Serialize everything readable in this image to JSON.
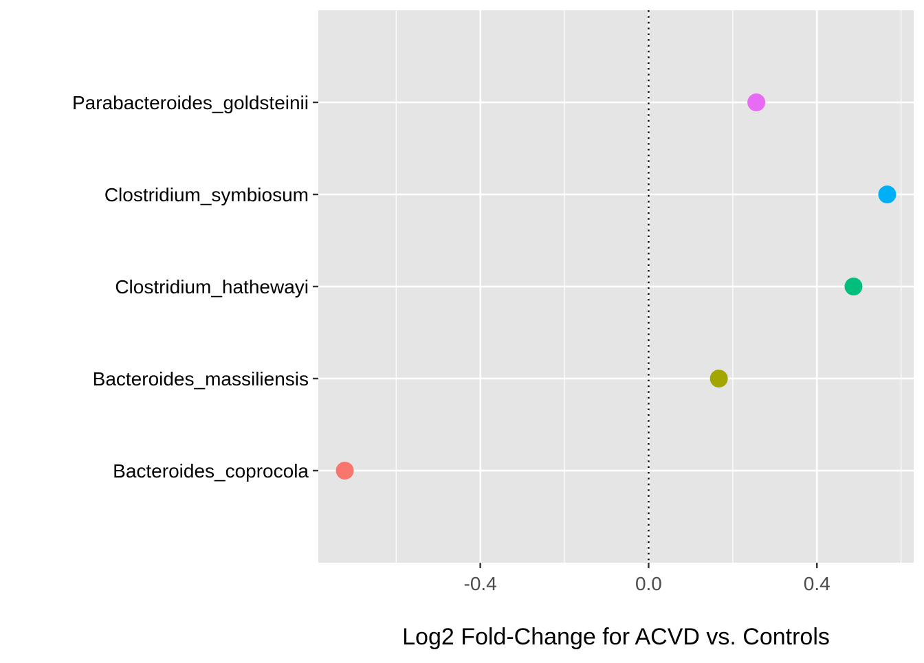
{
  "chart_data": {
    "type": "scatter",
    "title": "",
    "xlabel": "Log2 Fold-Change for ACVD vs. Controls",
    "ylabel": "",
    "xlim": [
      -0.785,
      0.63
    ],
    "x_ticks": [
      {
        "value": -0.4,
        "label": "-0.4"
      },
      {
        "value": 0.0,
        "label": "0.0"
      },
      {
        "value": 0.4,
        "label": "0.4"
      }
    ],
    "x_minor_gridlines": [
      -0.6,
      -0.2,
      0.2,
      0.6
    ],
    "categories": [
      "Bacteroides_coprocola",
      "Bacteroides_massiliensis",
      "Clostridium_hathewayi",
      "Clostridium_symbiosum",
      "Parabacteroides_goldsteinii"
    ],
    "points": [
      {
        "category": "Bacteroides_coprocola",
        "x": -0.722,
        "color": "#F8766D"
      },
      {
        "category": "Bacteroides_massiliensis",
        "x": 0.167,
        "color": "#A3A500"
      },
      {
        "category": "Clostridium_hathewayi",
        "x": 0.487,
        "color": "#00BF7D"
      },
      {
        "category": "Clostridium_symbiosum",
        "x": 0.567,
        "color": "#00B0F6"
      },
      {
        "category": "Parabacteroides_goldsteinii",
        "x": 0.256,
        "color": "#E76BF3"
      }
    ],
    "reference_line": {
      "x": 0.0,
      "style": "dotted"
    },
    "grid": true,
    "legend": "none",
    "panel_background": "#E5E5E5",
    "grid_color": "#FFFFFF"
  }
}
